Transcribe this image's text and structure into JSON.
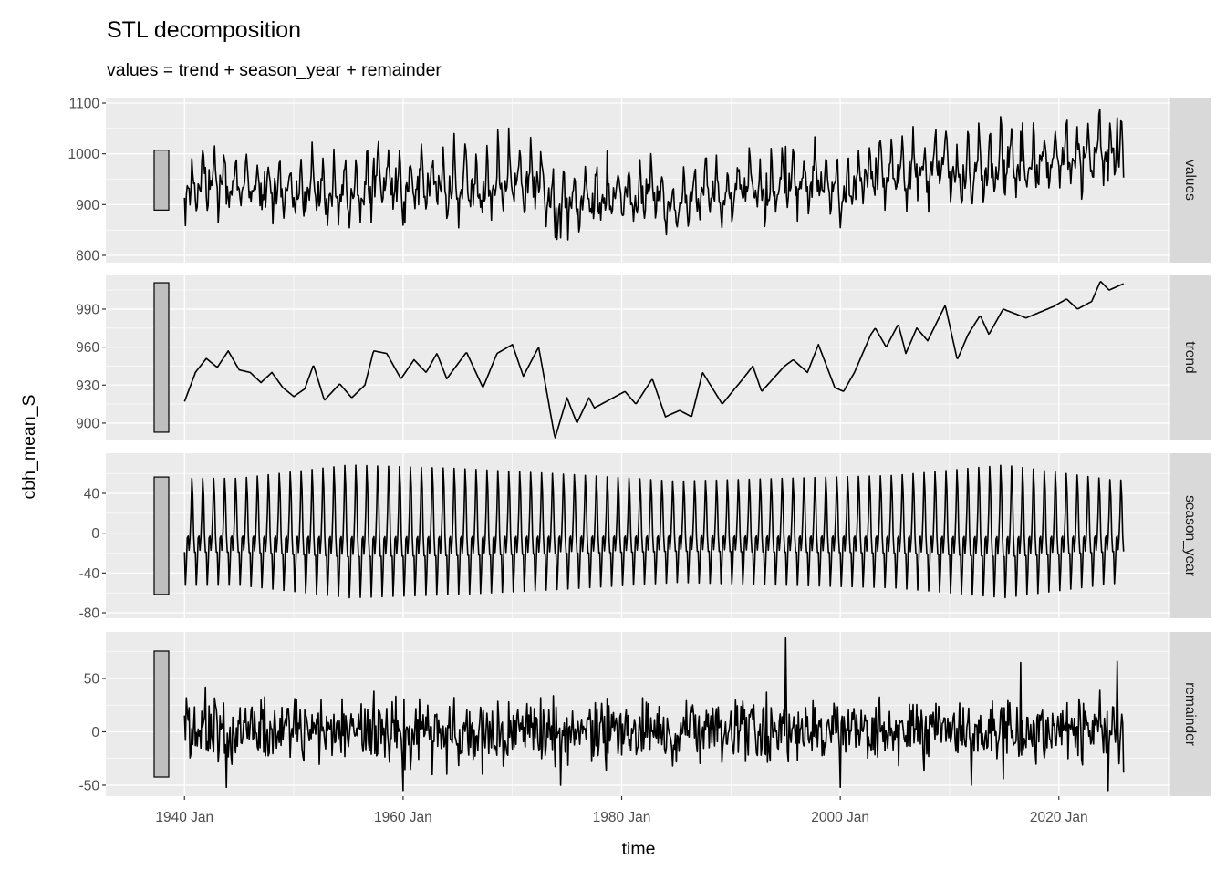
{
  "chart_data": {
    "type": "line",
    "title": "STL decomposition",
    "subtitle": "values = trend + season_year + remainder",
    "xlabel": "time",
    "ylabel": "cbh_mean_S",
    "x_range": [
      1932.8,
      2030.2
    ],
    "x_ticks": [
      1940,
      1960,
      1980,
      2000,
      2020
    ],
    "x_tick_labels": [
      "1940 Jan",
      "1960 Jan",
      "1980 Jan",
      "2000 Jan",
      "2020 Jan"
    ],
    "x_minor_ticks": [
      1950,
      1970,
      1990,
      2010,
      2030
    ],
    "series_start": 1940.0,
    "series_end": 2025.92,
    "frequency": "monthly",
    "scale_bar_range": 118,
    "panels": [
      {
        "name": "values",
        "ylim": [
          785.6,
          1110.8
        ],
        "ticks": [
          800,
          900,
          1000,
          1100
        ],
        "tick_labels": [
          "800",
          "900",
          "1000",
          "1100"
        ]
      },
      {
        "name": "trend",
        "ylim": [
          887,
          1016.6
        ],
        "ticks": [
          900,
          930,
          960,
          990
        ],
        "tick_labels": [
          "900",
          "930",
          "960",
          "990"
        ]
      },
      {
        "name": "season_year",
        "ylim": [
          -85.5,
          80.3
        ],
        "ticks": [
          -80,
          -40,
          0,
          40
        ],
        "tick_labels": [
          "-80",
          "-40",
          "0",
          "40"
        ]
      },
      {
        "name": "remainder",
        "ylim": [
          -60.3,
          93.6
        ],
        "ticks": [
          -50,
          0,
          50
        ],
        "tick_labels": [
          "-50",
          "0",
          "50"
        ]
      }
    ],
    "trend_knots": [
      [
        1940.0,
        917
      ],
      [
        1941.0,
        940
      ],
      [
        1942.0,
        951
      ],
      [
        1943.0,
        944
      ],
      [
        1944.0,
        957
      ],
      [
        1945.0,
        942
      ],
      [
        1946.0,
        940
      ],
      [
        1947.0,
        932
      ],
      [
        1948.0,
        940
      ],
      [
        1949.0,
        928
      ],
      [
        1950.0,
        921
      ],
      [
        1951.0,
        927
      ],
      [
        1951.8,
        946
      ],
      [
        1952.8,
        918
      ],
      [
        1954.2,
        931
      ],
      [
        1955.3,
        920
      ],
      [
        1956.5,
        930
      ],
      [
        1957.3,
        957
      ],
      [
        1958.5,
        955
      ],
      [
        1959.8,
        935
      ],
      [
        1961.0,
        950
      ],
      [
        1962.1,
        940
      ],
      [
        1963.1,
        955
      ],
      [
        1964.0,
        935
      ],
      [
        1965.8,
        956
      ],
      [
        1967.3,
        928
      ],
      [
        1968.6,
        955
      ],
      [
        1970.0,
        962
      ],
      [
        1971.0,
        937
      ],
      [
        1972.4,
        960
      ],
      [
        1973.9,
        888
      ],
      [
        1975.0,
        920
      ],
      [
        1975.9,
        900
      ],
      [
        1977.0,
        920
      ],
      [
        1977.5,
        912
      ],
      [
        1980.3,
        925
      ],
      [
        1981.3,
        915
      ],
      [
        1982.8,
        935
      ],
      [
        1984.0,
        905
      ],
      [
        1985.3,
        910
      ],
      [
        1986.4,
        905
      ],
      [
        1987.4,
        940
      ],
      [
        1989.2,
        915
      ],
      [
        1991.1,
        935
      ],
      [
        1992.0,
        945
      ],
      [
        1992.8,
        925
      ],
      [
        1994.9,
        945
      ],
      [
        1995.7,
        950
      ],
      [
        1997.0,
        940
      ],
      [
        1998.0,
        962
      ],
      [
        1999.5,
        928
      ],
      [
        2000.3,
        925
      ],
      [
        2001.3,
        940
      ],
      [
        2002.8,
        970
      ],
      [
        2003.2,
        975
      ],
      [
        2004.2,
        960
      ],
      [
        2005.3,
        978
      ],
      [
        2006.0,
        955
      ],
      [
        2007.0,
        975
      ],
      [
        2008.0,
        965
      ],
      [
        2009.6,
        993
      ],
      [
        2010.7,
        950
      ],
      [
        2011.7,
        970
      ],
      [
        2012.8,
        985
      ],
      [
        2013.6,
        970
      ],
      [
        2014.9,
        990
      ],
      [
        2017.0,
        983
      ],
      [
        2019.5,
        992
      ],
      [
        2020.7,
        998
      ],
      [
        2021.7,
        990
      ],
      [
        2023.0,
        996
      ],
      [
        2023.8,
        1012
      ],
      [
        2024.6,
        1005
      ],
      [
        2025.9,
        1010
      ]
    ],
    "season_shape": [
      -20,
      -55,
      -35,
      -5,
      -3,
      -18,
      -5,
      20,
      58,
      40,
      -2,
      -20
    ],
    "season_amplitude_by_decade": [
      [
        1940,
        0.95
      ],
      [
        1950,
        1.18
      ],
      [
        1960,
        1.12
      ],
      [
        1970,
        1.02
      ],
      [
        1980,
        0.9
      ],
      [
        1990,
        0.95
      ],
      [
        2000,
        1.0
      ],
      [
        2010,
        1.18
      ],
      [
        2020,
        0.92
      ]
    ],
    "remainder_sd": 15,
    "remainder_spikes": [
      [
        1943.8,
        -52
      ],
      [
        1960.0,
        -55
      ],
      [
        1962.7,
        -40
      ],
      [
        1974.4,
        -50
      ],
      [
        1995.0,
        88
      ],
      [
        2000.0,
        -52
      ],
      [
        2012.0,
        -50
      ],
      [
        2016.5,
        65
      ],
      [
        2024.5,
        -55
      ],
      [
        2025.3,
        66
      ]
    ]
  }
}
